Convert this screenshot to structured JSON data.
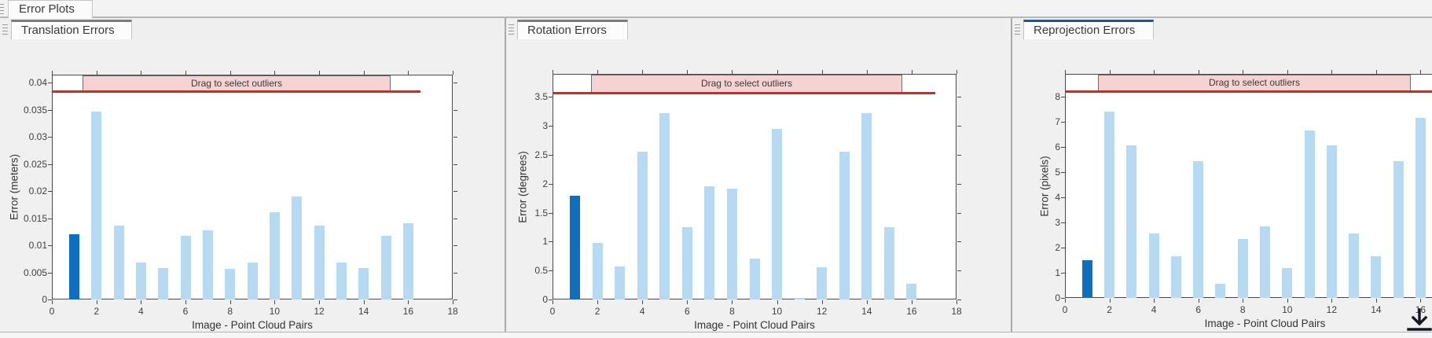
{
  "app": {
    "doc_tab_label": "Error Plots"
  },
  "colors": {
    "bar_light": "#b7daf3",
    "bar_selected": "#0f6fbe",
    "threshold_red": "#df231a",
    "band_fill": "#f5d3d3",
    "band_border": "#6e6e6e",
    "tab_accent_inactive": "#7c7c7c",
    "tab_accent_active": "#15589f",
    "panel_background": "#f0f0f0",
    "plot_background": "#ffffff"
  },
  "icons": {
    "doc_tab_grip": "drag-grip-icon",
    "panel_grips": "drag-grip-icon",
    "bottom_right": "download-icon"
  },
  "chart_data": [
    {
      "id": "translation-errors",
      "tab_label": "Translation Errors",
      "type": "bar",
      "title": "",
      "xlabel": "Image - Point Cloud Pairs",
      "ylabel": "Error (meters)",
      "x": [
        1,
        2,
        3,
        4,
        5,
        6,
        7,
        8,
        9,
        10,
        11,
        12,
        13,
        14,
        15,
        16
      ],
      "values": [
        0.0121,
        0.0347,
        0.0136,
        0.0068,
        0.0058,
        0.0117,
        0.0127,
        0.0056,
        0.0068,
        0.0161,
        0.019,
        0.0136,
        0.0068,
        0.0058,
        0.0117,
        0.0141
      ],
      "highlight_index": 0,
      "xlim": [
        0,
        18
      ],
      "ylim": [
        0,
        0.0415
      ],
      "xticks": [
        0,
        2,
        4,
        6,
        8,
        10,
        12,
        14,
        16,
        18
      ],
      "ytick_values": [
        0,
        0.005,
        0.01,
        0.015,
        0.02,
        0.025,
        0.03,
        0.035,
        0.04
      ],
      "ytick_labels": [
        "0",
        "0.005",
        "0.01",
        "0.015",
        "0.02",
        "0.025",
        "0.03",
        "0.035",
        "0.04"
      ],
      "threshold": 0.0384,
      "band_label": "Drag to select outliers",
      "grid": false,
      "legend": null,
      "tab_accent": "#7c7c7c"
    },
    {
      "id": "rotation-errors",
      "tab_label": "Rotation Errors",
      "type": "bar",
      "title": "",
      "xlabel": "Image - Point Cloud Pairs",
      "ylabel": "Error (degrees)",
      "x": [
        1,
        2,
        3,
        4,
        5,
        6,
        7,
        8,
        9,
        10,
        11,
        12,
        13,
        14,
        15,
        16
      ],
      "values": [
        1.8,
        0.98,
        0.57,
        2.56,
        3.22,
        1.25,
        1.95,
        1.92,
        0.71,
        2.95,
        0.02,
        0.56,
        2.56,
        3.22,
        1.25,
        0.27
      ],
      "highlight_index": 0,
      "xlim": [
        0,
        18
      ],
      "ylim": [
        0,
        3.9
      ],
      "xticks": [
        0,
        2,
        4,
        6,
        8,
        10,
        12,
        14,
        16,
        18
      ],
      "ytick_values": [
        0,
        0.5,
        1,
        1.5,
        2,
        2.5,
        3,
        3.5
      ],
      "ytick_labels": [
        "0",
        "0.5",
        "1",
        "1.5",
        "2",
        "2.5",
        "3",
        "3.5"
      ],
      "threshold": 3.57,
      "band_label": "Drag to select outliers",
      "grid": false,
      "legend": null,
      "tab_accent": "#7c7c7c"
    },
    {
      "id": "reprojection-errors",
      "tab_label": "Reprojection Errors",
      "type": "bar",
      "title": "",
      "xlabel": "Image - Point Cloud Pairs",
      "ylabel": "Error (pixels)",
      "x": [
        1,
        2,
        3,
        4,
        5,
        6,
        7,
        8,
        9,
        10,
        11,
        12,
        13,
        14,
        15,
        16
      ],
      "values": [
        1.5,
        7.4,
        6.06,
        2.55,
        1.65,
        5.43,
        0.55,
        2.35,
        2.85,
        1.18,
        6.65,
        6.06,
        2.55,
        1.65,
        5.43,
        7.15
      ],
      "highlight_index": 0,
      "xlim": [
        0,
        18
      ],
      "ylim": [
        0,
        8.9
      ],
      "xticks": [
        0,
        2,
        4,
        6,
        8,
        10,
        12,
        14,
        16
      ],
      "ytick_values": [
        0,
        1,
        2,
        3,
        4,
        5,
        6,
        7,
        8
      ],
      "ytick_labels": [
        "0",
        "1",
        "2",
        "3",
        "4",
        "5",
        "6",
        "7",
        "8"
      ],
      "threshold": 8.2,
      "band_label": "Drag to select outliers",
      "grid": false,
      "legend": null,
      "tab_accent": "#15589f"
    }
  ]
}
